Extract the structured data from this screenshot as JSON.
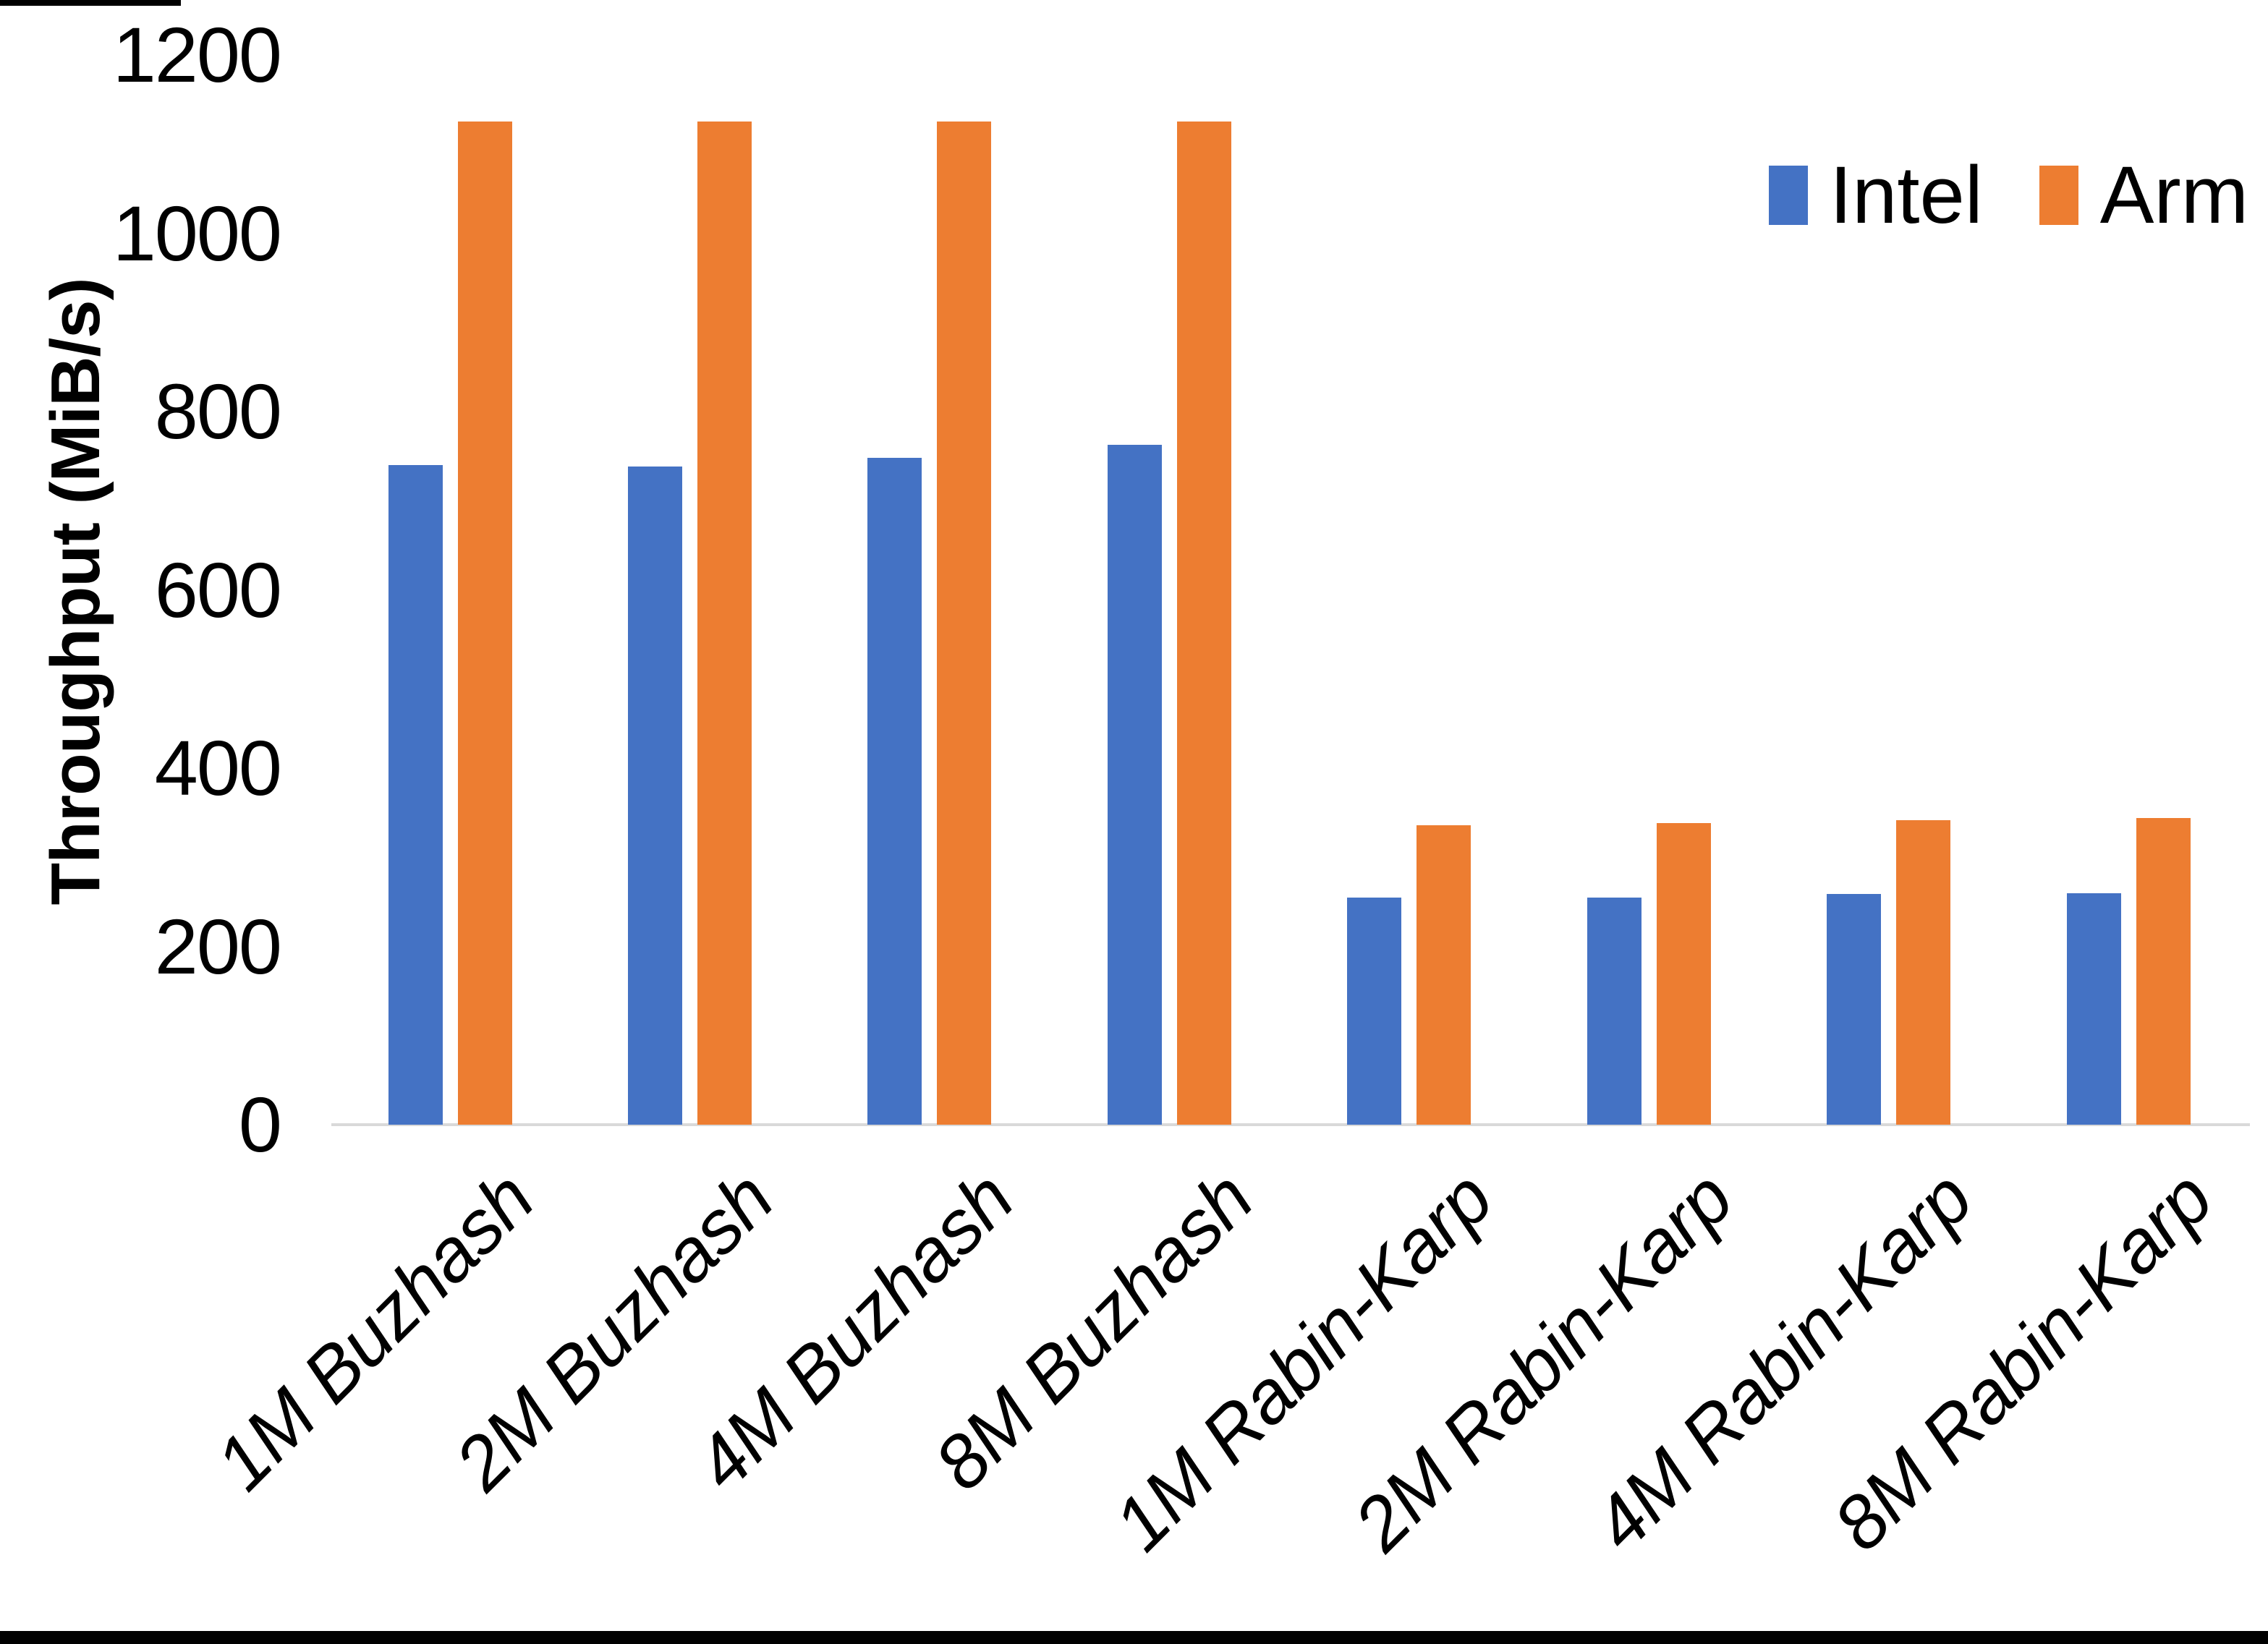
{
  "chart_data": {
    "type": "bar",
    "title": "",
    "ylabel": "Throughput (MiB/s)",
    "xlabel": "",
    "ylim": [
      0,
      1200
    ],
    "yticks": [
      0,
      200,
      400,
      600,
      800,
      1000,
      1200
    ],
    "categories": [
      "1M Buzhash",
      "2M Buzhash",
      "4M Buzhash",
      "8M Buzhash",
      "1M Rabin-Karp",
      "2M Rabin-Karp",
      "4M Rabin-Karp",
      "8M Rabin-Karp"
    ],
    "series": [
      {
        "name": "Intel",
        "color": "#4472C4",
        "values": [
          740,
          738,
          748,
          763,
          255,
          255,
          259,
          260
        ]
      },
      {
        "name": "Arm",
        "color": "#ED7D31",
        "values": [
          1125,
          1125,
          1125,
          1125,
          336,
          338,
          342,
          344
        ]
      }
    ],
    "legend_position": "top-right",
    "grid": false,
    "axis_line_color": "#D9D9D9",
    "background_color": "#FFFFFF",
    "frame_color": "#000000"
  }
}
